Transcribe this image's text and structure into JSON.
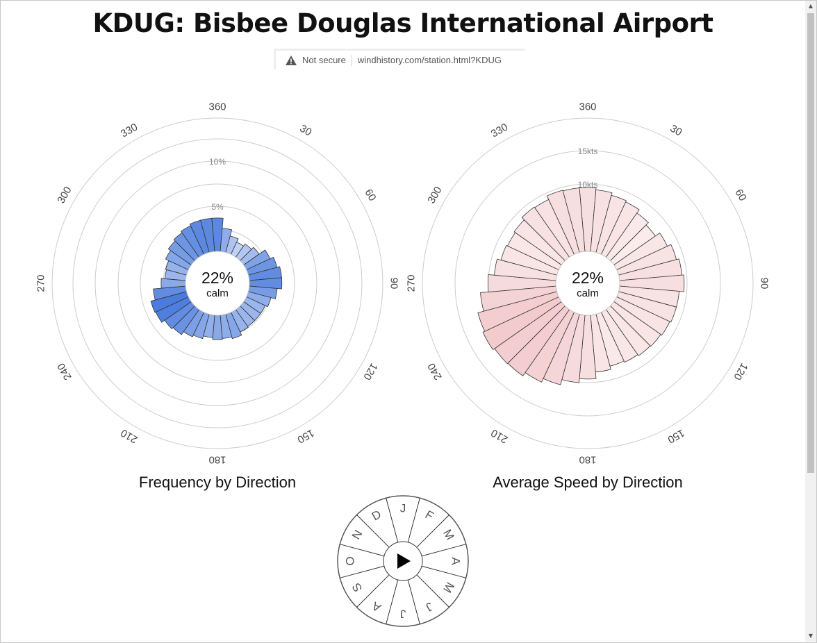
{
  "page": {
    "title": "KDUG: Bisbee Douglas International Airport"
  },
  "urlbar": {
    "security_text": "Not secure",
    "url": "windhistory.com/station.html?KDUG"
  },
  "direction_labels": [
    "360",
    "30",
    "60",
    "90",
    "120",
    "150",
    "180",
    "210",
    "240",
    "270",
    "300",
    "330"
  ],
  "month_selector": {
    "months": [
      "J",
      "F",
      "M",
      "A",
      "M",
      "J",
      "J",
      "A",
      "S",
      "O",
      "N",
      "D"
    ],
    "play_icon": "play-icon"
  },
  "chart_data": [
    {
      "type": "polar-bar",
      "title": "Frequency by Direction",
      "calm_pct": "22%",
      "calm_label": "calm",
      "ring_labels": [
        "5%",
        "10%"
      ],
      "unit": "%",
      "bar_color": "#4a7bdd",
      "directions_deg": [
        0,
        10,
        20,
        30,
        40,
        50,
        60,
        70,
        80,
        90,
        100,
        110,
        120,
        130,
        140,
        150,
        160,
        170,
        180,
        190,
        200,
        210,
        220,
        230,
        240,
        250,
        260,
        270,
        280,
        290,
        300,
        310,
        320,
        330,
        340,
        350
      ],
      "values": [
        3.7,
        2.6,
        1.9,
        1.5,
        1.8,
        2.1,
        2.9,
        3.3,
        3.6,
        3.6,
        3.1,
        2.6,
        2.3,
        2.3,
        2.3,
        2.4,
        2.8,
        2.6,
        2.7,
        2.5,
        2.8,
        3.0,
        3.4,
        3.6,
        4.0,
        4.1,
        3.6,
        2.7,
        2.3,
        2.4,
        2.8,
        3.1,
        3.3,
        3.5,
        3.7,
        3.7
      ]
    },
    {
      "type": "polar-bar",
      "title": "Average Speed by Direction",
      "calm_pct": "22%",
      "calm_label": "calm",
      "ring_labels": [
        "10kts",
        "15kts"
      ],
      "unit": "kts",
      "bar_color": "#e8a0a4",
      "directions_deg": [
        0,
        10,
        20,
        30,
        40,
        50,
        60,
        70,
        80,
        90,
        100,
        110,
        120,
        130,
        140,
        150,
        160,
        170,
        180,
        190,
        200,
        210,
        220,
        230,
        240,
        250,
        260,
        270,
        280,
        290,
        300,
        310,
        320,
        330,
        340,
        350
      ],
      "values": [
        9.6,
        9.3,
        8.9,
        8.7,
        8.1,
        7.6,
        8.4,
        9.0,
        9.4,
        9.7,
        9.0,
        9.0,
        8.8,
        8.6,
        8.5,
        8.3,
        8.1,
        8.6,
        9.6,
        10.2,
        11.0,
        11.6,
        12.2,
        12.3,
        12.6,
        12.3,
        11.4,
        10.2,
        9.3,
        8.7,
        8.5,
        8.7,
        9.2,
        9.1,
        9.7,
        9.6
      ]
    }
  ]
}
